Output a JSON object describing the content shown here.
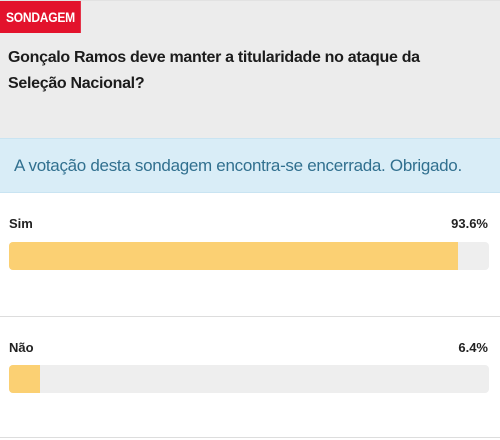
{
  "poll": {
    "badge": "SONDAGEM",
    "question": "Gonçalo Ramos deve manter a titularidade no ataque da Seleção Nacional?",
    "notice": "A votação desta sondagem encontra-se encerrada. Obrigado.",
    "options": [
      {
        "label": "Sim",
        "percent_text": "93.6%",
        "percent": 93.6
      },
      {
        "label": "Não",
        "percent_text": "6.4%",
        "percent": 6.4
      }
    ]
  },
  "colors": {
    "badge_bg": "#e3122c",
    "bar_fill": "#fbd073",
    "bar_track": "#eeeeee",
    "notice_bg": "#d9edf7",
    "notice_text": "#31708f"
  }
}
